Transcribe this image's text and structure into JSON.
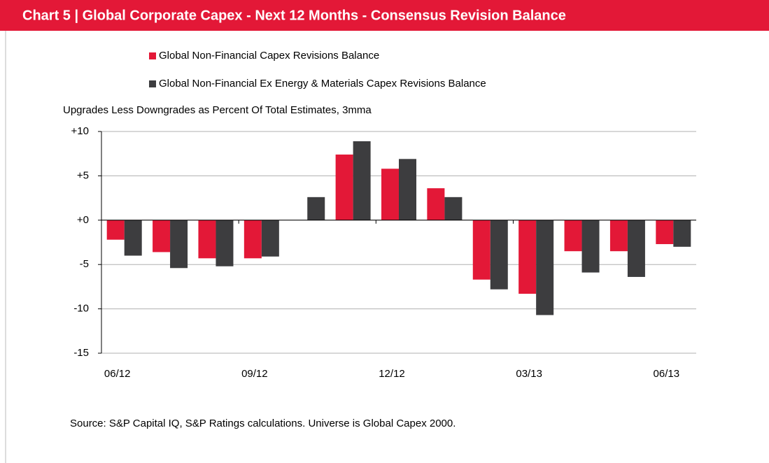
{
  "chart_data": {
    "type": "bar",
    "title": "Chart 5  |  Global Corporate Capex - Next 12 Months - Consensus Revision Balance",
    "y_axis_label": "Upgrades Less Downgrades as Percent Of Total Estimates, 3mma",
    "source": "Source: S&P Capital IQ, S&P Ratings calculations. Universe is Global Capex 2000.",
    "categories": [
      "06/12",
      null,
      null,
      "09/12",
      null,
      null,
      "12/12",
      null,
      null,
      "03/13",
      null,
      null,
      "06/13"
    ],
    "series": [
      {
        "name": "Global Non-Financial Capex Revisions Balance",
        "color": "#e31837",
        "values": [
          -2.2,
          -3.6,
          -4.3,
          -4.3,
          0,
          7.4,
          5.8,
          3.6,
          -6.7,
          -8.3,
          -3.5,
          -3.5,
          -2.7
        ]
      },
      {
        "name": "Global Non-Financial Ex Energy & Materials Capex Revisions Balance",
        "color": "#3d3d3f",
        "values": [
          -4.0,
          -5.4,
          -5.2,
          -4.1,
          2.6,
          8.9,
          6.9,
          2.6,
          -7.8,
          -10.7,
          -5.9,
          -6.4,
          -3.0
        ]
      }
    ],
    "ylim": [
      -15,
      10
    ],
    "yticks": [
      -15,
      -10,
      -5,
      {
        "value": 0,
        "label": "+0"
      },
      {
        "value": 5,
        "label": "+5"
      },
      {
        "value": 10,
        "label": "+10"
      }
    ],
    "grid": true
  }
}
